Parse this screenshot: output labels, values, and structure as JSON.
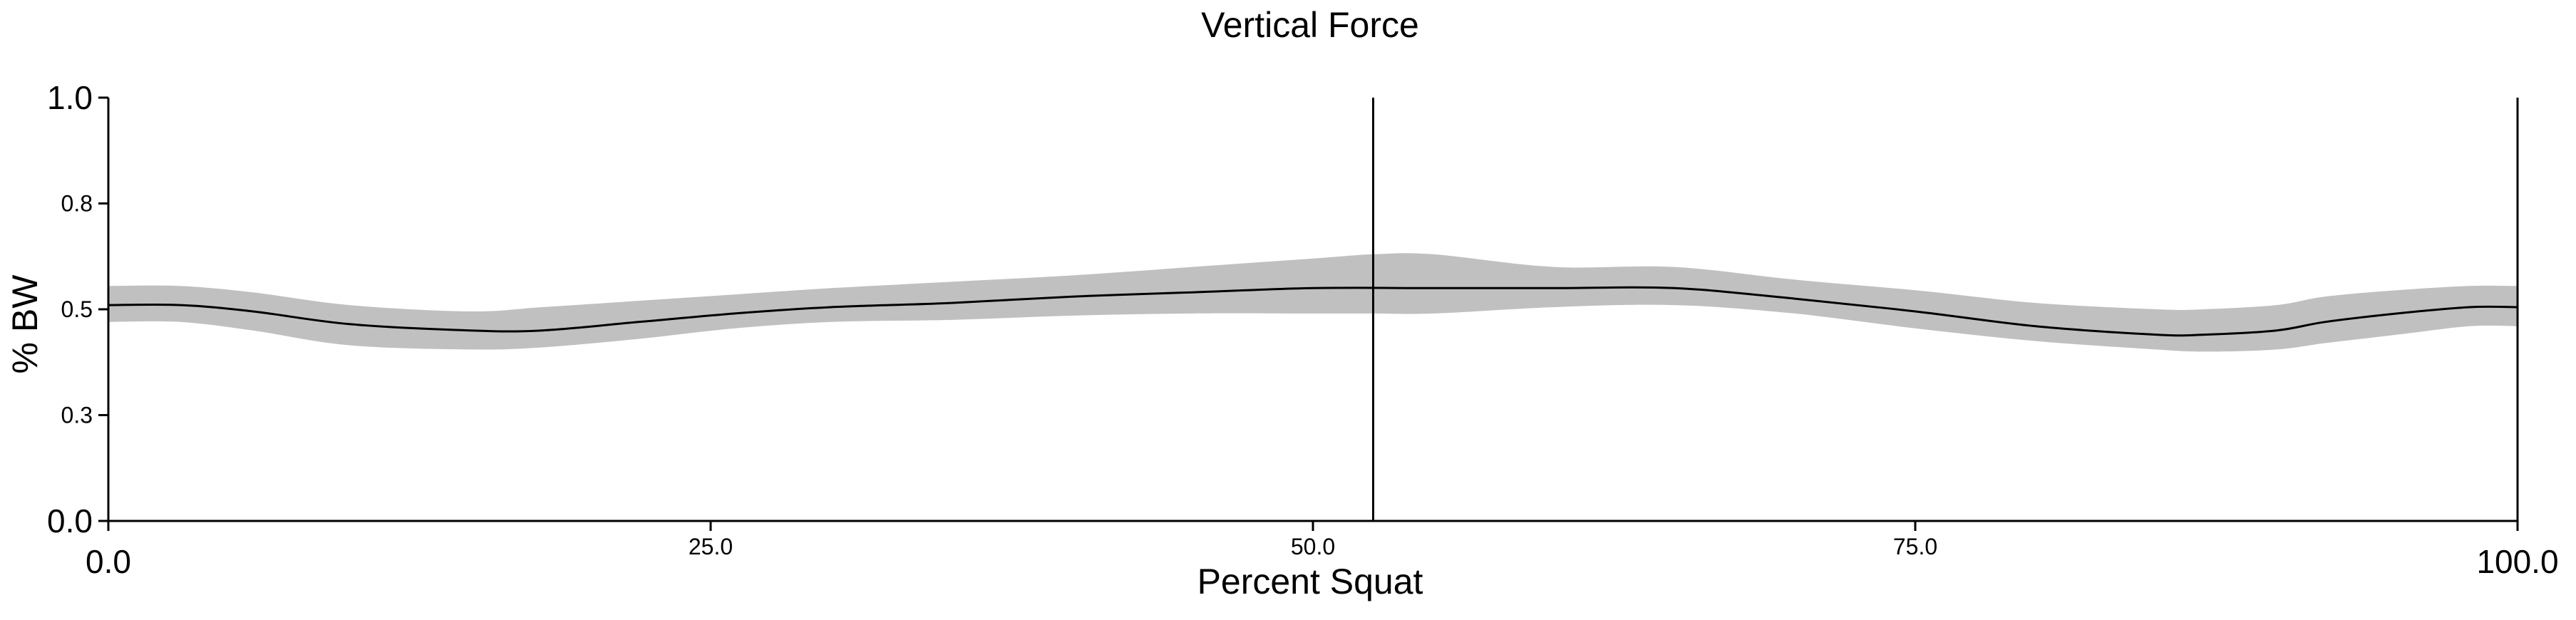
{
  "chart_data": {
    "type": "line",
    "title": "Vertical Force",
    "xlabel": "Percent Squat",
    "ylabel": "% BW",
    "xlim": [
      0,
      100
    ],
    "ylim": [
      0,
      1
    ],
    "x_ticks": [
      {
        "value": 0,
        "label": "0.0",
        "major": true
      },
      {
        "value": 25,
        "label": "25.0",
        "major": false
      },
      {
        "value": 50,
        "label": "50.0",
        "major": false
      },
      {
        "value": 75,
        "label": "75.0",
        "major": false
      },
      {
        "value": 100,
        "label": "100.0",
        "major": true
      }
    ],
    "y_ticks": [
      {
        "value": 0,
        "label": "0.0",
        "major": true
      },
      {
        "value": 0.25,
        "label": "0.3",
        "major": false
      },
      {
        "value": 0.5,
        "label": "0.5",
        "major": false
      },
      {
        "value": 0.75,
        "label": "0.8",
        "major": false
      },
      {
        "value": 1,
        "label": "1.0",
        "major": true
      }
    ],
    "grid": false,
    "vertical_marker_x": 52.5,
    "series": [
      {
        "name": "mean",
        "color": "#000000",
        "x": [
          0,
          3,
          6,
          10,
          15,
          18,
          22,
          26,
          30,
          35,
          40,
          45,
          50,
          55,
          60,
          65,
          70,
          75,
          80,
          85,
          87,
          90,
          92,
          95,
          98,
          100
        ],
        "y": [
          0.51,
          0.51,
          0.495,
          0.465,
          0.45,
          0.45,
          0.47,
          0.49,
          0.505,
          0.515,
          0.53,
          0.54,
          0.55,
          0.55,
          0.55,
          0.55,
          0.525,
          0.495,
          0.46,
          0.44,
          0.44,
          0.45,
          0.47,
          0.49,
          0.505,
          0.505
        ]
      },
      {
        "name": "upper",
        "color": "#c0c0c0",
        "x": [
          0,
          3,
          6,
          10,
          15,
          18,
          22,
          26,
          30,
          35,
          40,
          45,
          50,
          52.5,
          55,
          60,
          65,
          70,
          75,
          80,
          85,
          87,
          90,
          92,
          95,
          98,
          100
        ],
        "y": [
          0.555,
          0.555,
          0.54,
          0.51,
          0.495,
          0.505,
          0.52,
          0.535,
          0.55,
          0.565,
          0.58,
          0.6,
          0.62,
          0.63,
          0.63,
          0.6,
          0.6,
          0.57,
          0.545,
          0.515,
          0.5,
          0.5,
          0.51,
          0.53,
          0.545,
          0.555,
          0.555
        ]
      },
      {
        "name": "lower",
        "color": "#c0c0c0",
        "x": [
          0,
          3,
          6,
          10,
          15,
          18,
          22,
          26,
          30,
          35,
          40,
          45,
          50,
          52.5,
          55,
          60,
          65,
          70,
          75,
          80,
          85,
          87,
          90,
          92,
          95,
          98,
          100
        ],
        "y": [
          0.47,
          0.47,
          0.45,
          0.415,
          0.405,
          0.41,
          0.43,
          0.455,
          0.47,
          0.475,
          0.485,
          0.49,
          0.49,
          0.49,
          0.49,
          0.505,
          0.51,
          0.49,
          0.455,
          0.425,
          0.405,
          0.4,
          0.405,
          0.42,
          0.44,
          0.46,
          0.46
        ]
      }
    ]
  }
}
